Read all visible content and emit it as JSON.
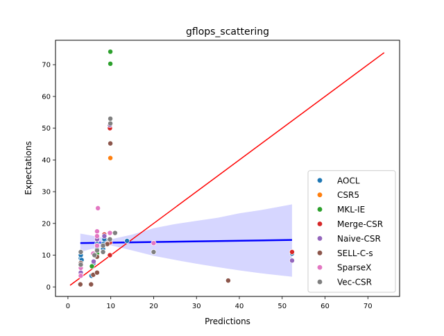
{
  "chart_data": {
    "type": "scatter",
    "title": "gflops_scattering",
    "xlabel": "Predictions",
    "ylabel": "Expectations",
    "xlim": [
      -2.9,
      77.4
    ],
    "ylim": [
      -3.0,
      77.7
    ],
    "x_ticks": [
      0,
      10,
      20,
      30,
      40,
      50,
      60,
      70
    ],
    "y_ticks": [
      0,
      10,
      20,
      30,
      40,
      50,
      60,
      70
    ],
    "legend_position": "lower right",
    "series": [
      {
        "name": "AOCL",
        "color": "#1f77b4",
        "points": [
          [
            3.0,
            9.0
          ],
          [
            3.0,
            10.0
          ],
          [
            3.2,
            8.5
          ],
          [
            5.5,
            3.5
          ],
          [
            6.0,
            7.5
          ],
          [
            6.8,
            12.0
          ],
          [
            6.8,
            13.5
          ],
          [
            8.2,
            12.0
          ],
          [
            8.2,
            13.5
          ],
          [
            8.5,
            15.0
          ],
          [
            9.5,
            14.5
          ],
          [
            13.8,
            14.5
          ],
          [
            52.3,
            10.5
          ]
        ]
      },
      {
        "name": "CSR5",
        "color": "#ff7f0e",
        "points": [
          [
            9.9,
            40.6
          ],
          [
            9.6,
            14.0
          ],
          [
            52.3,
            11.0
          ]
        ]
      },
      {
        "name": "MKL-IE",
        "color": "#2ca02c",
        "points": [
          [
            9.9,
            74.1
          ],
          [
            9.9,
            70.3
          ],
          [
            5.6,
            6.5
          ],
          [
            6.8,
            10.5
          ]
        ]
      },
      {
        "name": "Merge-CSR",
        "color": "#d62728",
        "points": [
          [
            9.8,
            50.0
          ],
          [
            9.8,
            14.0
          ],
          [
            9.8,
            10.0
          ],
          [
            8.5,
            16.5
          ],
          [
            52.3,
            11.0
          ]
        ]
      },
      {
        "name": "Naive-CSR",
        "color": "#9467bd",
        "points": [
          [
            9.8,
            51.0
          ],
          [
            8.5,
            16.0
          ],
          [
            6.8,
            15.0
          ],
          [
            6.0,
            8.0
          ],
          [
            3.0,
            4.5
          ],
          [
            52.3,
            8.3
          ]
        ]
      },
      {
        "name": "SELL-C-s",
        "color": "#8c564b",
        "points": [
          [
            9.9,
            45.2
          ],
          [
            2.9,
            0.8
          ],
          [
            5.4,
            0.8
          ],
          [
            5.9,
            3.8
          ],
          [
            6.8,
            4.5
          ],
          [
            6.8,
            9.5
          ],
          [
            8.2,
            11.0
          ],
          [
            9.2,
            13.5
          ],
          [
            37.4,
            2.0
          ],
          [
            3.0,
            7.5
          ]
        ]
      },
      {
        "name": "SparseX",
        "color": "#e377c2",
        "points": [
          [
            7.0,
            24.8
          ],
          [
            6.8,
            17.5
          ],
          [
            6.8,
            16.0
          ],
          [
            6.8,
            13.0
          ],
          [
            3.0,
            6.0
          ],
          [
            3.0,
            3.5
          ],
          [
            9.8,
            17.0
          ],
          [
            20.0,
            13.8
          ],
          [
            5.9,
            10.5
          ]
        ]
      },
      {
        "name": "Vec-CSR",
        "color": "#7f7f7f",
        "points": [
          [
            9.9,
            53.0
          ],
          [
            9.9,
            51.5
          ],
          [
            11.0,
            17.0
          ],
          [
            9.8,
            15.0
          ],
          [
            8.2,
            13.0
          ],
          [
            8.2,
            11.0
          ],
          [
            6.8,
            11.5
          ],
          [
            6.2,
            10.0
          ],
          [
            3.0,
            11.0
          ],
          [
            3.0,
            7.0
          ],
          [
            20.0,
            11.0
          ]
        ]
      }
    ],
    "regression_line": {
      "color": "#0000ff",
      "x": [
        2.9,
        52.3
      ],
      "y": [
        13.8,
        14.8
      ]
    },
    "confidence_band": {
      "color": "#ccccff",
      "x": [
        2.9,
        5,
        10,
        15,
        20,
        25,
        30,
        35,
        40,
        45,
        52.3
      ],
      "upper": [
        16.8,
        16.3,
        15.0,
        16.5,
        18.5,
        19.8,
        20.8,
        21.8,
        23.2,
        24.2,
        26.0
      ],
      "lower": [
        11.0,
        11.8,
        13.1,
        11.5,
        9.8,
        8.5,
        7.3,
        6.2,
        5.2,
        4.3,
        3.2
      ]
    },
    "identity_line": {
      "color": "#ff0000",
      "x": [
        0.5,
        73.8
      ],
      "y": [
        0.5,
        73.8
      ]
    }
  }
}
